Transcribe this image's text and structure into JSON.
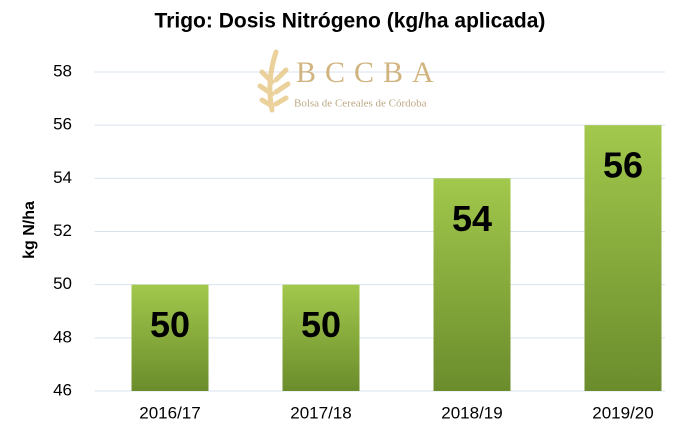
{
  "chart_data": {
    "type": "bar",
    "title": "Trigo: Dosis Nitrógeno (kg/ha aplicada)",
    "y_label": "kg N/ha",
    "watermark": {
      "name": "BCCBA",
      "subtitle": "Bolsa de Cereales de Córdoba"
    },
    "categories": [
      "2016/17",
      "2017/18",
      "2018/19",
      "2019/20"
    ],
    "values": [
      50,
      50,
      54,
      56
    ],
    "color": "#8db33f",
    "ylim": [
      46,
      58
    ],
    "yticks": [
      46,
      48,
      50,
      52,
      54,
      56,
      58
    ],
    "grid": true
  }
}
